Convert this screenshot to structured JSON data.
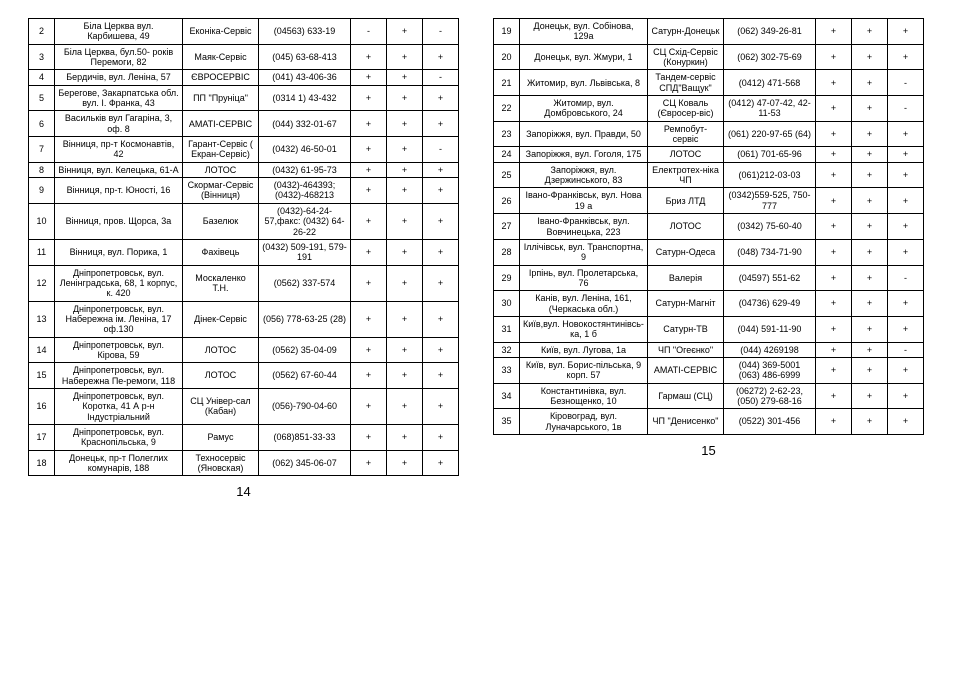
{
  "pages": [
    {
      "number": "14",
      "rows": [
        {
          "n": "2",
          "addr": "Біла Церква вул. Карбишева, 49",
          "org": "Еконіка-Сервіс",
          "phone": "(04563) 633-19",
          "f1": "-",
          "f2": "+",
          "f3": "-"
        },
        {
          "n": "3",
          "addr": "Біла Церква, бул.50- років Перемоги, 82",
          "org": "Маяк-Сервіс",
          "phone": "(045) 63-68-413",
          "f1": "+",
          "f2": "+",
          "f3": "+"
        },
        {
          "n": "4",
          "addr": "Бердичів, вул. Леніна, 57",
          "org": "ЄВРОСЕРВІС",
          "phone": "(041) 43-406-36",
          "f1": "+",
          "f2": "+",
          "f3": "-"
        },
        {
          "n": "5",
          "addr": "Берегове, Закарпатська обл. вул. І. Франка, 43",
          "org": "ПП \"Пруніца\"",
          "phone": "(0314 1) 43-432",
          "f1": "+",
          "f2": "+",
          "f3": "+"
        },
        {
          "n": "6",
          "addr": "Васильків вул Гагаріна, 3, оф. 8",
          "org": "AMATI-СЕРВІС",
          "phone": "(044) 332-01-67",
          "f1": "+",
          "f2": "+",
          "f3": "+"
        },
        {
          "n": "7",
          "addr": "Вінниця, пр-т Космонавтів, 42",
          "org": "Гарант-Сервіс ( Екран-Сервіс)",
          "phone": "(0432) 46-50-01",
          "f1": "+",
          "f2": "+",
          "f3": "-"
        },
        {
          "n": "8",
          "addr": "Вінниця, вул. Келецька, 61-А",
          "org": "ЛОТОС",
          "phone": "(0432) 61-95-73",
          "f1": "+",
          "f2": "+",
          "f3": "+"
        },
        {
          "n": "9",
          "addr": "Вінниця, пр-т. Юності, 16",
          "org": "Скормаг-Сервіс (Вінниця)",
          "phone": "(0432)-464393; (0432)-468213",
          "f1": "+",
          "f2": "+",
          "f3": "+"
        },
        {
          "n": "10",
          "addr": "Вінниця, пров. Щорса, 3а",
          "org": "Базелюк",
          "phone": "(0432)-64-24-57,факс: (0432) 64-26-22",
          "f1": "+",
          "f2": "+",
          "f3": "+"
        },
        {
          "n": "11",
          "addr": "Вінниця, вул. Порика, 1",
          "org": "Фахівець",
          "phone": "(0432) 509-191, 579-191",
          "f1": "+",
          "f2": "+",
          "f3": "+"
        },
        {
          "n": "12",
          "addr": "Дніпропетровськ, вул. Ленінградська, 68, 1 корпус, к. 420",
          "org": "Москаленко Т.Н.",
          "phone": "(0562) 337-574",
          "f1": "+",
          "f2": "+",
          "f3": "+"
        },
        {
          "n": "13",
          "addr": "Дніпропетровськ, вул. Набережна ім. Леніна, 17 оф.130",
          "org": "Дінек-Сервіс",
          "phone": "(056) 778-63-25 (28)",
          "f1": "+",
          "f2": "+",
          "f3": "+"
        },
        {
          "n": "14",
          "addr": "Дніпропетровськ, вул. Кірова, 59",
          "org": "ЛОТОС",
          "phone": "(0562) 35-04-09",
          "f1": "+",
          "f2": "+",
          "f3": "+"
        },
        {
          "n": "15",
          "addr": "Дніпропетровськ, вул. Набережна Пе-ремоги, 118",
          "org": "ЛОТОС",
          "phone": "(0562) 67-60-44",
          "f1": "+",
          "f2": "+",
          "f3": "+"
        },
        {
          "n": "16",
          "addr": "Дніпропетровськ, вул. Коротка, 41 А р-н Індустріальний",
          "org": "СЦ Універ-сал (Кабан)",
          "phone": "(056)-790-04-60",
          "f1": "+",
          "f2": "+",
          "f3": "+"
        },
        {
          "n": "17",
          "addr": "Дніпропетровськ, вул. Краснопільська, 9",
          "org": "Рамус",
          "phone": "(068)851-33-33",
          "f1": "+",
          "f2": "+",
          "f3": "+"
        },
        {
          "n": "18",
          "addr": "Донецьк, пр-т Полеглих комунарів, 188",
          "org": "Техносервіс (Яновская)",
          "phone": "(062) 345-06-07",
          "f1": "+",
          "f2": "+",
          "f3": "+"
        }
      ]
    },
    {
      "number": "15",
      "rows": [
        {
          "n": "19",
          "addr": "Донецьк, вул. Собінова, 129а",
          "org": "Сатурн-Донецьк",
          "phone": "(062) 349-26-81",
          "f1": "+",
          "f2": "+",
          "f3": "+"
        },
        {
          "n": "20",
          "addr": "Донецьк, вул. Жмури, 1",
          "org": "СЦ Схід-Сервіс (Конуркин)",
          "phone": "(062) 302-75-69",
          "f1": "+",
          "f2": "+",
          "f3": "+"
        },
        {
          "n": "21",
          "addr": "Житомир, вул. Львівська, 8",
          "org": "Тандем-сервіс СПД\"Ващук\"",
          "phone": "(0412) 471-568",
          "f1": "+",
          "f2": "+",
          "f3": "-"
        },
        {
          "n": "22",
          "addr": "Житомир, вул. Домбровського, 24",
          "org": "СЦ Коваль (Євросер-віс)",
          "phone": "(0412) 47-07-42, 42-11-53",
          "f1": "+",
          "f2": "+",
          "f3": "-"
        },
        {
          "n": "23",
          "addr": "Запоріжжя, вул. Правди, 50",
          "org": "Ремпобут-сервіс",
          "phone": "(061) 220-97-65 (64)",
          "f1": "+",
          "f2": "+",
          "f3": "+"
        },
        {
          "n": "24",
          "addr": "Запоріжжя, вул. Гоголя, 175",
          "org": "ЛОТОС",
          "phone": "(061) 701-65-96",
          "f1": "+",
          "f2": "+",
          "f3": "+"
        },
        {
          "n": "25",
          "addr": "Запоріжжя, вул. Дзержинського, 83",
          "org": "Електротех-ніка ЧП",
          "phone": "(061)212-03-03",
          "f1": "+",
          "f2": "+",
          "f3": "+"
        },
        {
          "n": "26",
          "addr": "Івано-Франківськ, вул. Нова 19 а",
          "org": "Бриз ЛТД",
          "phone": "(0342)559-525, 750-777",
          "f1": "+",
          "f2": "+",
          "f3": "+"
        },
        {
          "n": "27",
          "addr": "Івано-Франківськ, вул. Вовчинецька, 223",
          "org": "ЛОТОС",
          "phone": "(0342) 75-60-40",
          "f1": "+",
          "f2": "+",
          "f3": "+"
        },
        {
          "n": "28",
          "addr": "Іллічівськ, вул. Транспортна, 9",
          "org": "Сатурн-Одеса",
          "phone": "(048) 734-71-90",
          "f1": "+",
          "f2": "+",
          "f3": "+"
        },
        {
          "n": "29",
          "addr": "Ірпінь, вул. Пролетарська, 76",
          "org": "Валерія",
          "phone": "(04597) 551-62",
          "f1": "+",
          "f2": "+",
          "f3": "-"
        },
        {
          "n": "30",
          "addr": "Канів, вул. Леніна, 161, (Черкаська обл.)",
          "org": "Сатурн-Магніт",
          "phone": "(04736) 629-49",
          "f1": "+",
          "f2": "+",
          "f3": "+"
        },
        {
          "n": "31",
          "addr": "Київ,вул. Новокостянтинівсь-ка, 1 б",
          "org": "Сатурн-ТВ",
          "phone": "(044) 591-11-90",
          "f1": "+",
          "f2": "+",
          "f3": "+"
        },
        {
          "n": "32",
          "addr": "Київ, вул. Лугова, 1а",
          "org": "ЧП \"Огеєнко\"",
          "phone": "(044) 4269198",
          "f1": "+",
          "f2": "+",
          "f3": "-"
        },
        {
          "n": "33",
          "addr": "Київ, вул. Борис-пільська, 9 корп. 57",
          "org": "AMATI-СЕРВІС",
          "phone": "(044) 369-5001 (063) 486-6999",
          "f1": "+",
          "f2": "+",
          "f3": "+"
        },
        {
          "n": "34",
          "addr": "Константинівка, вул. Безнощенко, 10",
          "org": "Гармаш (СЦ)",
          "phone": "(06272) 2-62-23, (050) 279-68-16",
          "f1": "+",
          "f2": "+",
          "f3": "+"
        },
        {
          "n": "35",
          "addr": "Кіровоград, вул. Луначарського, 1в",
          "org": "ЧП \"Денисенко\"",
          "phone": "(0522) 301-456",
          "f1": "+",
          "f2": "+",
          "f3": "+"
        }
      ]
    }
  ]
}
